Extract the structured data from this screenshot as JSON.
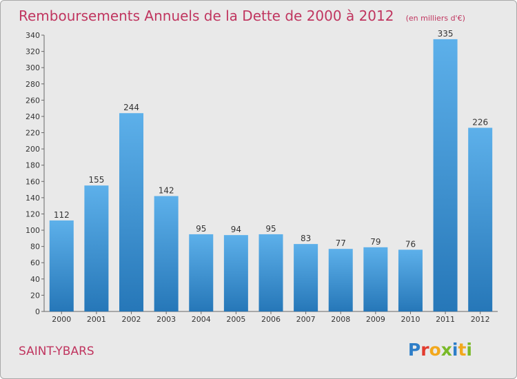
{
  "title": "Remboursements Annuels de la Dette de 2000 à 2012",
  "unit_note": "(en milliers d'€)",
  "commune": "SAINT-YBARS",
  "brand": {
    "letters": [
      {
        "ch": "P",
        "color": "#2e7ec8"
      },
      {
        "ch": "r",
        "color": "#e23b2e"
      },
      {
        "ch": "o",
        "color": "#f2a81d"
      },
      {
        "ch": "x",
        "color": "#79b928"
      },
      {
        "ch": "i",
        "color": "#2e7ec8"
      },
      {
        "ch": "t",
        "color": "#f2a81d"
      },
      {
        "ch": "i",
        "color": "#79b928"
      }
    ]
  },
  "colors": {
    "bar_top": "#5db0ea",
    "bar_bottom": "#2677b8",
    "title": "#c0355f",
    "background": "#e9e9e9"
  },
  "chart_data": {
    "type": "bar",
    "categories": [
      "2000",
      "2001",
      "2002",
      "2003",
      "2004",
      "2005",
      "2006",
      "2007",
      "2008",
      "2009",
      "2010",
      "2011",
      "2012"
    ],
    "values": [
      112,
      155,
      244,
      142,
      95,
      94,
      95,
      83,
      77,
      79,
      76,
      335,
      226
    ],
    "ylim": [
      0,
      340
    ],
    "ytick_step": 20,
    "grid": false,
    "title": "Remboursements Annuels de la Dette de 2000 à 2012",
    "xlabel": "",
    "ylabel": ""
  }
}
